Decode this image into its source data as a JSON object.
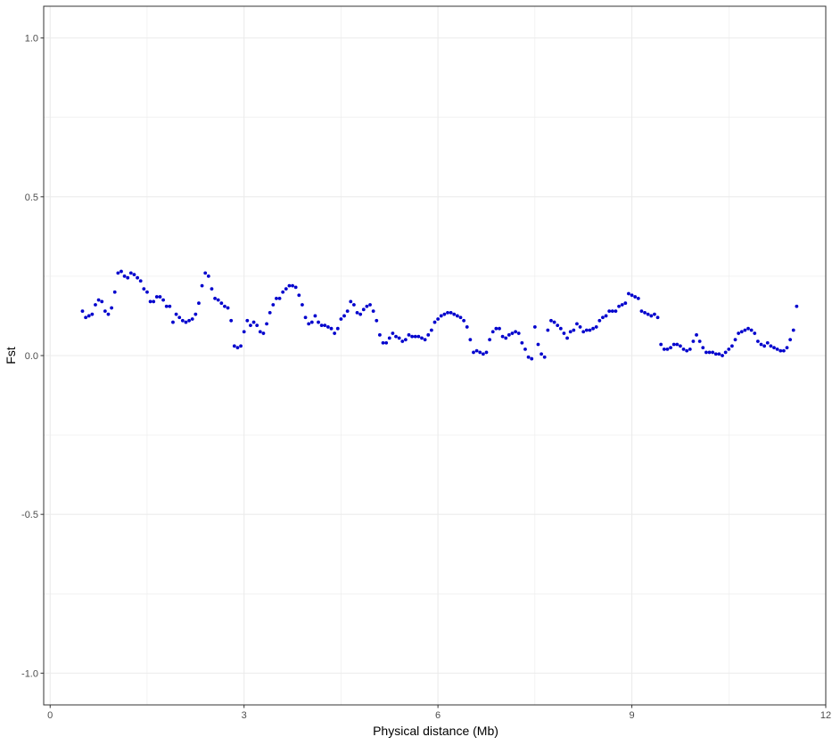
{
  "chart_data": {
    "type": "scatter",
    "title": "",
    "xlabel": "Physical distance (Mb)",
    "ylabel": "Fst",
    "xlim": [
      -0.1,
      12.0
    ],
    "ylim": [
      -1.1,
      1.1
    ],
    "x_ticks": [
      0,
      3,
      6,
      9,
      12
    ],
    "x_tick_labels": [
      "0",
      "3",
      "6",
      "9",
      "12"
    ],
    "y_ticks": [
      -1.0,
      -0.5,
      0.0,
      0.5,
      1.0
    ],
    "y_tick_labels": [
      "-1.0",
      "-0.5",
      "0.0",
      "0.5",
      "1.0"
    ],
    "grid": true,
    "legend": "none",
    "point_color": "#0000cd",
    "series": [
      {
        "x": [
          0.5,
          0.55,
          0.6,
          0.65,
          0.7,
          0.75,
          0.8,
          0.85,
          0.9,
          0.95,
          1.0,
          1.05,
          1.1,
          1.15,
          1.2,
          1.25,
          1.3,
          1.35,
          1.4,
          1.45,
          1.5,
          1.55,
          1.6,
          1.65,
          1.7,
          1.75,
          1.8,
          1.85,
          1.9,
          1.95,
          2.0,
          2.05,
          2.1,
          2.15,
          2.2,
          2.25,
          2.3,
          2.35,
          2.4,
          2.45,
          2.5,
          2.55,
          2.6,
          2.65,
          2.7,
          2.75,
          2.8,
          2.85,
          2.9,
          2.95,
          3.0,
          3.05,
          3.1,
          3.15,
          3.2,
          3.25,
          3.3,
          3.35,
          3.4,
          3.45,
          3.5,
          3.55,
          3.6,
          3.65,
          3.7,
          3.75,
          3.8,
          3.85,
          3.9,
          3.95,
          4.0,
          4.05,
          4.1,
          4.15,
          4.2,
          4.25,
          4.3,
          4.35,
          4.4,
          4.45,
          4.5,
          4.55,
          4.6,
          4.65,
          4.7,
          4.75,
          4.8,
          4.85,
          4.9,
          4.95,
          5.0,
          5.05,
          5.1,
          5.15,
          5.2,
          5.25,
          5.3,
          5.35,
          5.4,
          5.45,
          5.5,
          5.55,
          5.6,
          5.65,
          5.7,
          5.75,
          5.8,
          5.85,
          5.9,
          5.95,
          6.0,
          6.05,
          6.1,
          6.15,
          6.2,
          6.25,
          6.3,
          6.35,
          6.4,
          6.45,
          6.5,
          6.55,
          6.6,
          6.65,
          6.7,
          6.75,
          6.8,
          6.85,
          6.9,
          6.95,
          7.0,
          7.05,
          7.1,
          7.15,
          7.2,
          7.25,
          7.3,
          7.35,
          7.4,
          7.45,
          7.5,
          7.55,
          7.6,
          7.65,
          7.7,
          7.75,
          7.8,
          7.85,
          7.9,
          7.95,
          8.0,
          8.05,
          8.1,
          8.15,
          8.2,
          8.25,
          8.3,
          8.35,
          8.4,
          8.45,
          8.5,
          8.55,
          8.6,
          8.65,
          8.7,
          8.75,
          8.8,
          8.85,
          8.9,
          8.95,
          9.0,
          9.05,
          9.1,
          9.15,
          9.2,
          9.25,
          9.3,
          9.35,
          9.4,
          9.45,
          9.5,
          9.55,
          9.6,
          9.65,
          9.7,
          9.75,
          9.8,
          9.85,
          9.9,
          9.95,
          10.0,
          10.05,
          10.1,
          10.15,
          10.2,
          10.25,
          10.3,
          10.35,
          10.4,
          10.45,
          10.5,
          10.55,
          10.6,
          10.65,
          10.7,
          10.75,
          10.8,
          10.85,
          10.9,
          10.95,
          11.0,
          11.05,
          11.1,
          11.15,
          11.2,
          11.25,
          11.3,
          11.35,
          11.4,
          11.45,
          11.5,
          11.55
        ],
        "y": [
          0.14,
          0.12,
          0.125,
          0.13,
          0.16,
          0.175,
          0.17,
          0.14,
          0.13,
          0.15,
          0.2,
          0.26,
          0.265,
          0.25,
          0.245,
          0.26,
          0.255,
          0.245,
          0.235,
          0.21,
          0.2,
          0.17,
          0.17,
          0.185,
          0.185,
          0.175,
          0.155,
          0.155,
          0.105,
          0.13,
          0.12,
          0.11,
          0.105,
          0.11,
          0.115,
          0.13,
          0.165,
          0.22,
          0.26,
          0.25,
          0.21,
          0.18,
          0.175,
          0.165,
          0.155,
          0.15,
          0.11,
          0.03,
          0.025,
          0.03,
          0.075,
          0.11,
          0.095,
          0.105,
          0.095,
          0.075,
          0.07,
          0.1,
          0.135,
          0.16,
          0.18,
          0.18,
          0.2,
          0.21,
          0.22,
          0.22,
          0.215,
          0.19,
          0.16,
          0.12,
          0.1,
          0.105,
          0.125,
          0.105,
          0.095,
          0.095,
          0.09,
          0.085,
          0.07,
          0.085,
          0.115,
          0.125,
          0.14,
          0.17,
          0.16,
          0.135,
          0.13,
          0.145,
          0.155,
          0.16,
          0.14,
          0.11,
          0.065,
          0.04,
          0.04,
          0.055,
          0.07,
          0.06,
          0.055,
          0.045,
          0.05,
          0.065,
          0.06,
          0.06,
          0.06,
          0.055,
          0.05,
          0.065,
          0.08,
          0.105,
          0.115,
          0.125,
          0.13,
          0.135,
          0.135,
          0.13,
          0.125,
          0.12,
          0.11,
          0.09,
          0.05,
          0.01,
          0.015,
          0.01,
          0.005,
          0.01,
          0.05,
          0.075,
          0.085,
          0.085,
          0.06,
          0.055,
          0.065,
          0.07,
          0.075,
          0.07,
          0.04,
          0.02,
          -0.005,
          -0.01,
          0.09,
          0.035,
          0.005,
          -0.005,
          0.08,
          0.11,
          0.105,
          0.095,
          0.085,
          0.07,
          0.055,
          0.075,
          0.08,
          0.1,
          0.09,
          0.075,
          0.08,
          0.08,
          0.085,
          0.09,
          0.11,
          0.12,
          0.125,
          0.14,
          0.14,
          0.14,
          0.155,
          0.16,
          0.165,
          0.195,
          0.19,
          0.185,
          0.18,
          0.14,
          0.135,
          0.13,
          0.125,
          0.13,
          0.12,
          0.035,
          0.02,
          0.02,
          0.025,
          0.035,
          0.035,
          0.03,
          0.02,
          0.015,
          0.02,
          0.045,
          0.065,
          0.045,
          0.025,
          0.01,
          0.01,
          0.01,
          0.005,
          0.005,
          0.0,
          0.01,
          0.02,
          0.03,
          0.05,
          0.07,
          0.075,
          0.08,
          0.085,
          0.08,
          0.07,
          0.045,
          0.035,
          0.03,
          0.04,
          0.03,
          0.025,
          0.02,
          0.015,
          0.015,
          0.025,
          0.05,
          0.08,
          0.155
        ]
      }
    ]
  }
}
